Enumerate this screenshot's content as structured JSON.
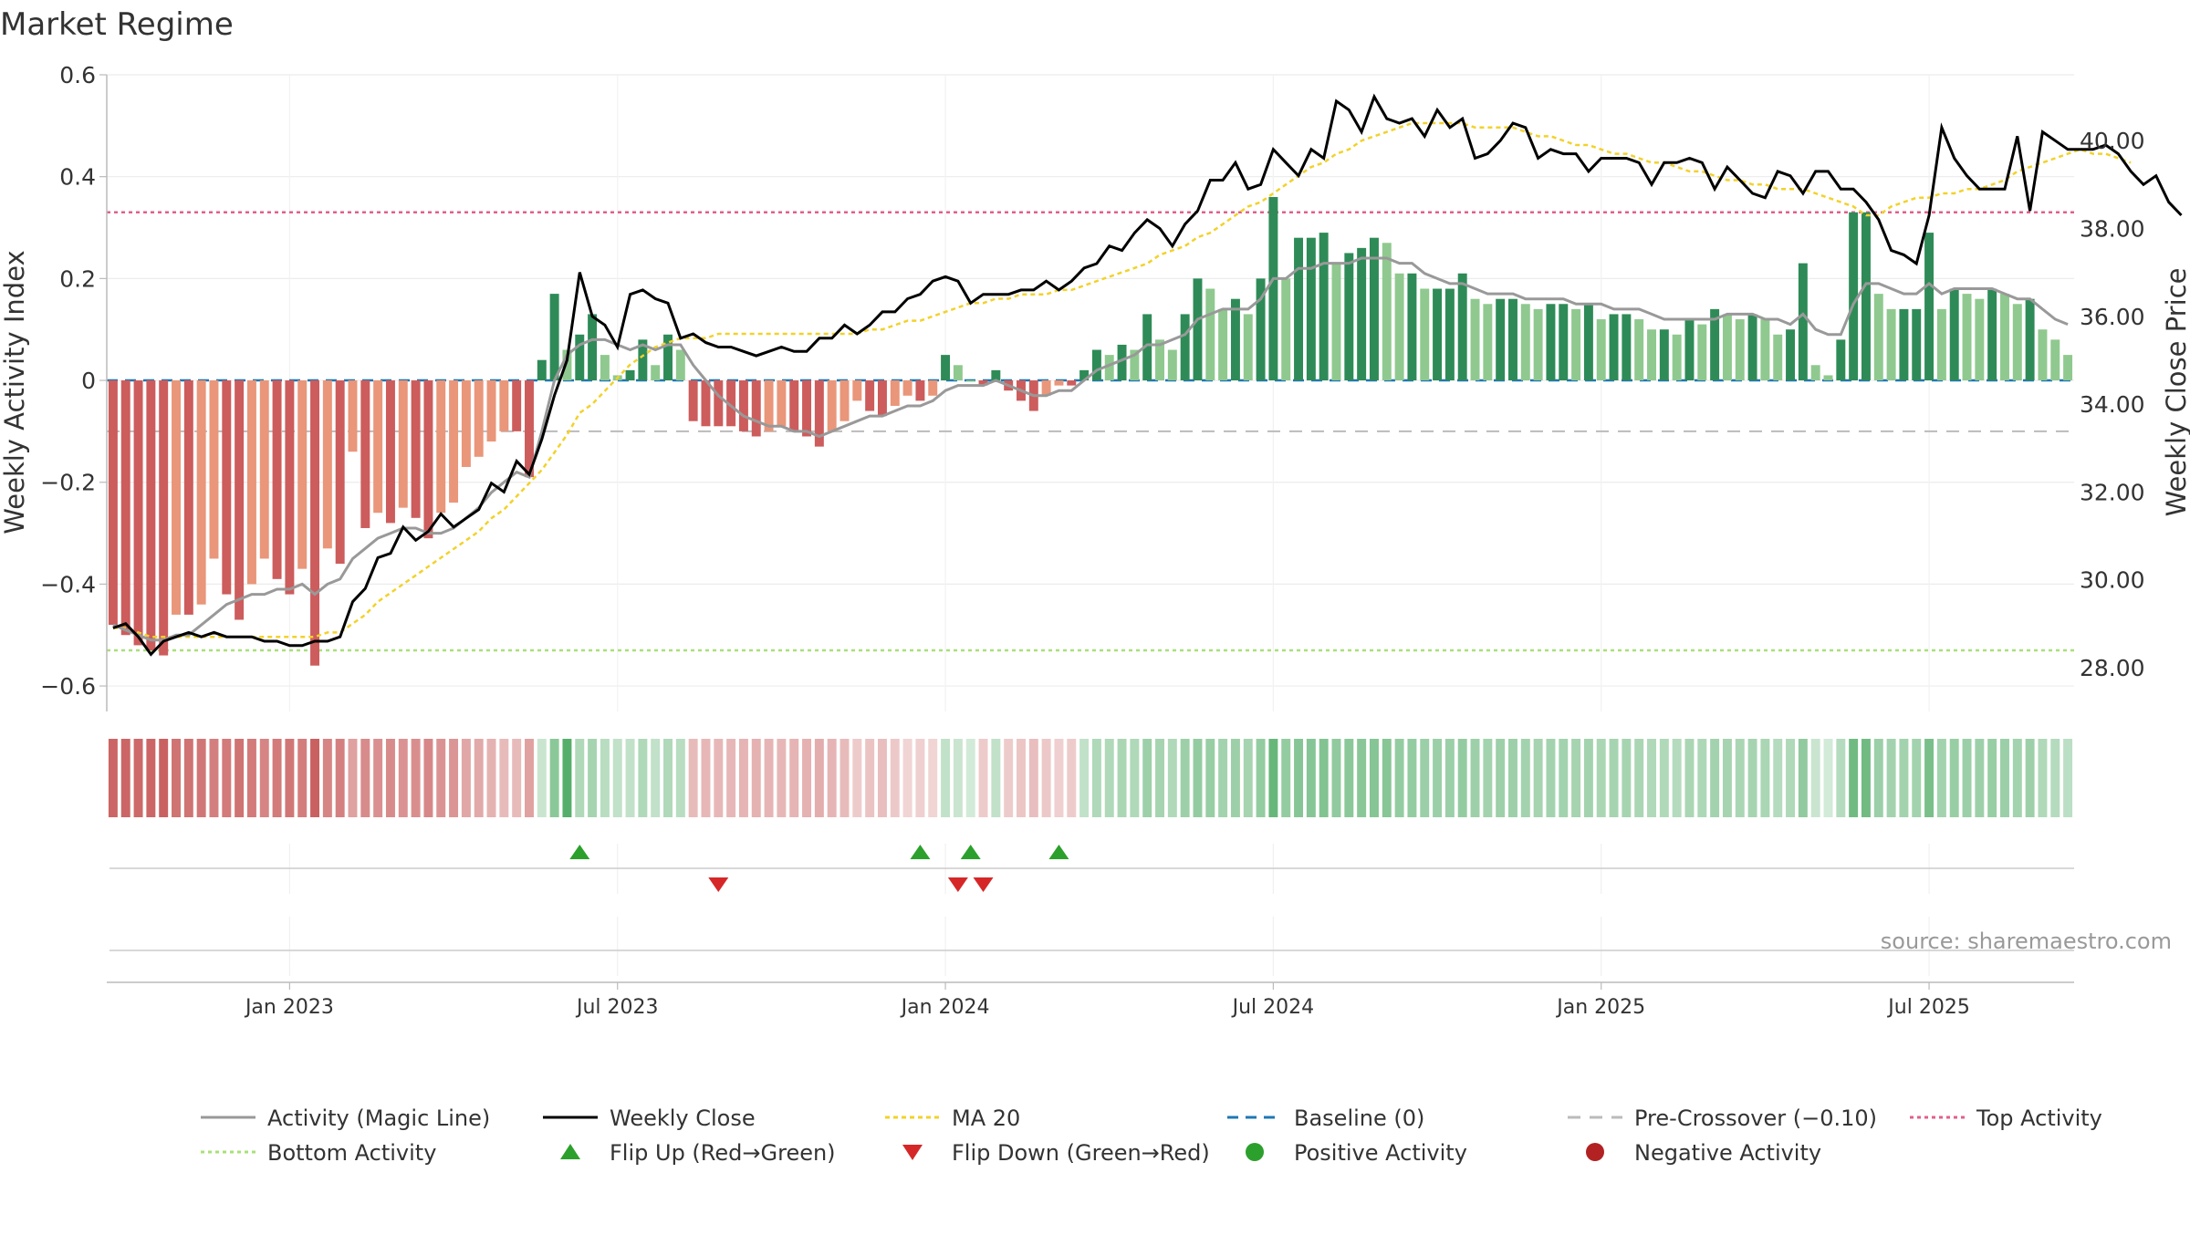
{
  "title": "Market Regime",
  "source": "source: sharemaestro.com",
  "chart_data": {
    "type": "bar",
    "title": "Market Regime",
    "xlabel": "",
    "ylabel": "Weekly Activity Index",
    "y2label": "Weekly Close Price",
    "ylim": [
      -0.65,
      0.6
    ],
    "y2lim": [
      27.0,
      41.5
    ],
    "yticks": [
      {
        "v": 0.6,
        "label": "0.6"
      },
      {
        "v": 0.4,
        "label": "0.4"
      },
      {
        "v": 0.2,
        "label": "0.2"
      },
      {
        "v": 0.0,
        "label": "0"
      },
      {
        "v": -0.2,
        "label": "−0.2"
      },
      {
        "v": -0.4,
        "label": "−0.4"
      },
      {
        "v": -0.6,
        "label": "−0.6"
      }
    ],
    "y2ticks": [
      {
        "v": 40,
        "label": "40.00"
      },
      {
        "v": 38,
        "label": "38.00"
      },
      {
        "v": 36,
        "label": "36.00"
      },
      {
        "v": 34,
        "label": "34.00"
      },
      {
        "v": 32,
        "label": "32.00"
      },
      {
        "v": 30,
        "label": "30.00"
      },
      {
        "v": 28,
        "label": "28.00"
      }
    ],
    "xticks": [
      {
        "i": 14,
        "label": "Jan 2023"
      },
      {
        "i": 40,
        "label": "Jul 2023"
      },
      {
        "i": 66,
        "label": "Jan 2024"
      },
      {
        "i": 92,
        "label": "Jul 2024"
      },
      {
        "i": 118,
        "label": "Jan 2025"
      },
      {
        "i": 144,
        "label": "Jul 2025"
      }
    ],
    "grid": true,
    "legend_position": "bottom",
    "top_activity": 0.33,
    "bottom_activity": -0.53,
    "pre_crossover": -0.1,
    "baseline": 0,
    "colors": {
      "neg_strong": "#cd5c5c",
      "neg_light": "#e9967a",
      "pos_strong": "#2e8b57",
      "pos_light": "#8fc98f",
      "magic_line": "#999999",
      "weekly_close": "#000000",
      "ma20": "#f2d22a",
      "baseline": "#1f77b4",
      "pre_crossover": "#bbbbbb",
      "top_activity": "#e0608a",
      "bottom_activity": "#a8e07a",
      "flip_up": "#2ca02c",
      "flip_down": "#d62728",
      "positive_activity": "#2ca02c",
      "negative_activity": "#b22222"
    },
    "activity": [
      -0.48,
      -0.5,
      -0.52,
      -0.53,
      -0.54,
      -0.46,
      -0.46,
      -0.44,
      -0.35,
      -0.42,
      -0.47,
      -0.4,
      -0.35,
      -0.39,
      -0.42,
      -0.37,
      -0.56,
      -0.33,
      -0.36,
      -0.14,
      -0.29,
      -0.26,
      -0.28,
      -0.25,
      -0.27,
      -0.31,
      -0.26,
      -0.24,
      -0.17,
      -0.15,
      -0.12,
      -0.1,
      -0.1,
      -0.19,
      0.04,
      0.17,
      0.06,
      0.09,
      0.13,
      0.05,
      0.01,
      0.02,
      0.08,
      0.03,
      0.09,
      0.06,
      -0.08,
      -0.09,
      -0.09,
      -0.09,
      -0.1,
      -0.11,
      -0.1,
      -0.09,
      -0.1,
      -0.11,
      -0.13,
      -0.1,
      -0.08,
      -0.04,
      -0.06,
      -0.07,
      -0.05,
      -0.03,
      -0.04,
      -0.03,
      0.05,
      0.03,
      0,
      -0.01,
      0.02,
      -0.02,
      -0.04,
      -0.06,
      -0.03,
      -0.01,
      -0.01,
      0.02,
      0.06,
      0.05,
      0.07,
      0.06,
      0.13,
      0.08,
      0.06,
      0.13,
      0.2,
      0.18,
      0.14,
      0.16,
      0.13,
      0.2,
      0.36,
      0.2,
      0.28,
      0.28,
      0.29,
      0.23,
      0.25,
      0.26,
      0.28,
      0.27,
      0.21,
      0.21,
      0.18,
      0.18,
      0.18,
      0.21,
      0.16,
      0.15,
      0.16,
      0.16,
      0.15,
      0.14,
      0.15,
      0.15,
      0.14,
      0.15,
      0.12,
      0.13,
      0.13,
      0.12,
      0.1,
      0.1,
      0.09,
      0.12,
      0.11,
      0.14,
      0.13,
      0.12,
      0.13,
      0.12,
      0.09,
      0.1,
      0.23,
      0.03,
      0.01,
      0.08,
      0.33,
      0.33,
      0.17,
      0.14,
      0.14,
      0.14,
      0.29,
      0.14,
      0.18,
      0.17,
      0.16,
      0.18,
      0.17,
      0.15,
      0.16,
      0.1,
      0.08,
      0.05
    ],
    "magic_line": [
      -0.48,
      -0.49,
      -0.5,
      -0.51,
      -0.51,
      -0.5,
      -0.5,
      -0.48,
      -0.46,
      -0.44,
      -0.43,
      -0.42,
      -0.42,
      -0.41,
      -0.41,
      -0.4,
      -0.42,
      -0.4,
      -0.39,
      -0.35,
      -0.33,
      -0.31,
      -0.3,
      -0.29,
      -0.29,
      -0.3,
      -0.3,
      -0.29,
      -0.27,
      -0.25,
      -0.22,
      -0.2,
      -0.18,
      -0.19,
      -0.1,
      0.0,
      0.05,
      0.07,
      0.08,
      0.08,
      0.07,
      0.06,
      0.07,
      0.06,
      0.07,
      0.07,
      0.03,
      0.0,
      -0.03,
      -0.05,
      -0.07,
      -0.08,
      -0.09,
      -0.09,
      -0.1,
      -0.1,
      -0.11,
      -0.1,
      -0.09,
      -0.08,
      -0.07,
      -0.07,
      -0.06,
      -0.05,
      -0.05,
      -0.04,
      -0.02,
      -0.01,
      -0.01,
      -0.01,
      0.0,
      -0.01,
      -0.02,
      -0.03,
      -0.03,
      -0.02,
      -0.02,
      0.0,
      0.02,
      0.03,
      0.04,
      0.05,
      0.07,
      0.07,
      0.08,
      0.09,
      0.12,
      0.13,
      0.14,
      0.14,
      0.14,
      0.16,
      0.2,
      0.2,
      0.22,
      0.22,
      0.23,
      0.23,
      0.23,
      0.24,
      0.24,
      0.24,
      0.23,
      0.23,
      0.21,
      0.2,
      0.19,
      0.19,
      0.18,
      0.17,
      0.17,
      0.17,
      0.16,
      0.16,
      0.16,
      0.16,
      0.15,
      0.15,
      0.15,
      0.14,
      0.14,
      0.14,
      0.13,
      0.12,
      0.12,
      0.12,
      0.12,
      0.12,
      0.13,
      0.13,
      0.13,
      0.12,
      0.12,
      0.11,
      0.13,
      0.1,
      0.09,
      0.09,
      0.15,
      0.19,
      0.19,
      0.18,
      0.17,
      0.17,
      0.19,
      0.17,
      0.18,
      0.18,
      0.18,
      0.18,
      0.17,
      0.16,
      0.16,
      0.14,
      0.12,
      0.11
    ],
    "weekly_close": [
      28.9,
      29.0,
      28.7,
      28.3,
      28.6,
      28.7,
      28.8,
      28.7,
      28.8,
      28.7,
      28.7,
      28.7,
      28.6,
      28.6,
      28.5,
      28.5,
      28.6,
      28.6,
      28.7,
      29.5,
      29.8,
      30.5,
      30.6,
      31.2,
      30.9,
      31.1,
      31.5,
      31.2,
      31.4,
      31.6,
      32.2,
      32.0,
      32.7,
      32.4,
      33.2,
      34.2,
      35.0,
      37.0,
      36.0,
      35.8,
      35.3,
      36.5,
      36.6,
      36.4,
      36.3,
      35.5,
      35.6,
      35.4,
      35.3,
      35.3,
      35.2,
      35.1,
      35.2,
      35.3,
      35.2,
      35.2,
      35.5,
      35.5,
      35.8,
      35.6,
      35.8,
      36.1,
      36.1,
      36.4,
      36.5,
      36.8,
      36.9,
      36.8,
      36.3,
      36.5,
      36.5,
      36.5,
      36.6,
      36.6,
      36.8,
      36.6,
      36.8,
      37.1,
      37.2,
      37.6,
      37.5,
      37.9,
      38.2,
      38.0,
      37.6,
      38.1,
      38.4,
      39.1,
      39.1,
      39.5,
      38.9,
      39.0,
      39.8,
      39.5,
      39.2,
      39.8,
      39.6,
      40.9,
      40.7,
      40.2,
      41.0,
      40.5,
      40.4,
      40.5,
      40.1,
      40.7,
      40.3,
      40.5,
      39.6,
      39.7,
      40.0,
      40.4,
      40.3,
      39.6,
      39.8,
      39.7,
      39.7,
      39.3,
      39.6,
      39.6,
      39.6,
      39.5,
      39.0,
      39.5,
      39.5,
      39.6,
      39.5,
      38.9,
      39.4,
      39.1,
      38.8,
      38.7,
      39.3,
      39.2,
      38.8,
      39.3,
      39.3,
      38.9,
      38.9,
      38.6,
      38.2,
      37.5,
      37.4,
      37.2,
      38.3,
      40.3,
      39.6,
      39.2,
      38.9,
      38.9,
      38.9,
      40.1,
      38.4,
      40.2,
      40.0,
      39.8,
      39.8,
      39.8,
      39.9,
      39.7,
      39.3,
      39.0,
      39.2,
      38.6,
      38.3
    ],
    "ma20": [
      28.9,
      28.9,
      28.8,
      28.7,
      28.7,
      28.7,
      28.7,
      28.7,
      28.7,
      28.7,
      28.7,
      28.7,
      28.7,
      28.7,
      28.7,
      28.7,
      28.7,
      28.8,
      28.8,
      29.0,
      29.2,
      29.5,
      29.7,
      29.9,
      30.1,
      30.3,
      30.5,
      30.7,
      30.9,
      31.1,
      31.4,
      31.6,
      31.9,
      32.2,
      32.5,
      32.9,
      33.3,
      33.8,
      34.0,
      34.3,
      34.6,
      34.9,
      35.1,
      35.3,
      35.4,
      35.5,
      35.5,
      35.5,
      35.6,
      35.6,
      35.6,
      35.6,
      35.6,
      35.6,
      35.6,
      35.6,
      35.6,
      35.6,
      35.6,
      35.6,
      35.7,
      35.7,
      35.8,
      35.9,
      35.9,
      36.0,
      36.1,
      36.2,
      36.3,
      36.3,
      36.4,
      36.4,
      36.5,
      36.5,
      36.5,
      36.6,
      36.6,
      36.7,
      36.8,
      36.9,
      37.0,
      37.1,
      37.2,
      37.4,
      37.5,
      37.6,
      37.8,
      37.9,
      38.1,
      38.3,
      38.5,
      38.6,
      38.8,
      39.0,
      39.2,
      39.4,
      39.5,
      39.7,
      39.8,
      40.0,
      40.1,
      40.2,
      40.3,
      40.4,
      40.4,
      40.4,
      40.4,
      40.4,
      40.3,
      40.3,
      40.3,
      40.3,
      40.2,
      40.1,
      40.1,
      40.0,
      39.9,
      39.9,
      39.8,
      39.7,
      39.7,
      39.6,
      39.5,
      39.5,
      39.4,
      39.3,
      39.3,
      39.2,
      39.1,
      39.1,
      39.0,
      39.0,
      38.9,
      38.9,
      38.9,
      38.8,
      38.7,
      38.6,
      38.5,
      38.3,
      38.3,
      38.5,
      38.6,
      38.7,
      38.7,
      38.8,
      38.8,
      38.9,
      38.9,
      39.0,
      39.1,
      39.3,
      39.4,
      39.5,
      39.6,
      39.7,
      39.8,
      39.7,
      39.7,
      39.6,
      39.5
    ],
    "regime_strip_alpha": [
      0.9,
      0.9,
      0.88,
      0.9,
      0.92,
      0.82,
      0.82,
      0.8,
      0.75,
      0.78,
      0.82,
      0.78,
      0.72,
      0.78,
      0.8,
      0.76,
      0.92,
      0.72,
      0.74,
      0.55,
      0.68,
      0.65,
      0.68,
      0.64,
      0.66,
      0.7,
      0.64,
      0.62,
      0.52,
      0.5,
      0.45,
      0.4,
      0.4,
      0.55,
      0.3,
      0.65,
      0.95,
      0.45,
      0.5,
      0.4,
      0.35,
      0.35,
      0.45,
      0.35,
      0.45,
      0.4,
      0.4,
      0.42,
      0.42,
      0.42,
      0.44,
      0.46,
      0.44,
      0.42,
      0.44,
      0.46,
      0.48,
      0.44,
      0.4,
      0.3,
      0.35,
      0.38,
      0.32,
      0.25,
      0.28,
      0.25,
      0.35,
      0.3,
      0.25,
      0.3,
      0.35,
      0.3,
      0.34,
      0.38,
      0.32,
      0.28,
      0.3,
      0.35,
      0.45,
      0.45,
      0.48,
      0.45,
      0.55,
      0.5,
      0.45,
      0.55,
      0.6,
      0.58,
      0.52,
      0.55,
      0.5,
      0.6,
      0.85,
      0.6,
      0.68,
      0.68,
      0.7,
      0.62,
      0.65,
      0.66,
      0.68,
      0.67,
      0.6,
      0.6,
      0.56,
      0.56,
      0.56,
      0.6,
      0.55,
      0.52,
      0.55,
      0.55,
      0.52,
      0.5,
      0.52,
      0.52,
      0.5,
      0.52,
      0.48,
      0.5,
      0.5,
      0.48,
      0.45,
      0.45,
      0.42,
      0.48,
      0.46,
      0.52,
      0.5,
      0.48,
      0.5,
      0.48,
      0.42,
      0.45,
      0.62,
      0.3,
      0.25,
      0.42,
      0.8,
      0.8,
      0.56,
      0.52,
      0.52,
      0.52,
      0.75,
      0.52,
      0.58,
      0.56,
      0.55,
      0.58,
      0.56,
      0.52,
      0.55,
      0.45,
      0.42,
      0.38
    ],
    "flip_up_index": [
      37,
      64,
      68,
      75
    ],
    "flip_down_index": [
      48,
      67,
      69
    ],
    "legend": [
      {
        "label": "Activity (Magic Line)",
        "kind": "line",
        "color": "#999999",
        "dash": ""
      },
      {
        "label": "Weekly Close",
        "kind": "line",
        "color": "#000000",
        "dash": ""
      },
      {
        "label": "MA 20",
        "kind": "line",
        "color": "#f2d22a",
        "dash": "5,4"
      },
      {
        "label": "Baseline (0)",
        "kind": "line",
        "color": "#1f77b4",
        "dash": "12,8"
      },
      {
        "label": "Pre-Crossover (−0.10)",
        "kind": "line",
        "color": "#bbbbbb",
        "dash": "14,10"
      },
      {
        "label": "Top Activity",
        "kind": "line",
        "color": "#e0608a",
        "dash": "4,4"
      },
      {
        "label": "Bottom Activity",
        "kind": "line",
        "color": "#a8e07a",
        "dash": "4,4"
      },
      {
        "label": "Flip Up (Red→Green)",
        "kind": "tri-up",
        "color": "#2ca02c",
        "dash": ""
      },
      {
        "label": "Flip Down (Green→Red)",
        "kind": "tri-down",
        "color": "#d62728",
        "dash": ""
      },
      {
        "label": "Positive Activity",
        "kind": "dot",
        "color": "#2ca02c",
        "dash": ""
      },
      {
        "label": "Negative Activity",
        "kind": "dot",
        "color": "#b22222",
        "dash": ""
      }
    ]
  }
}
